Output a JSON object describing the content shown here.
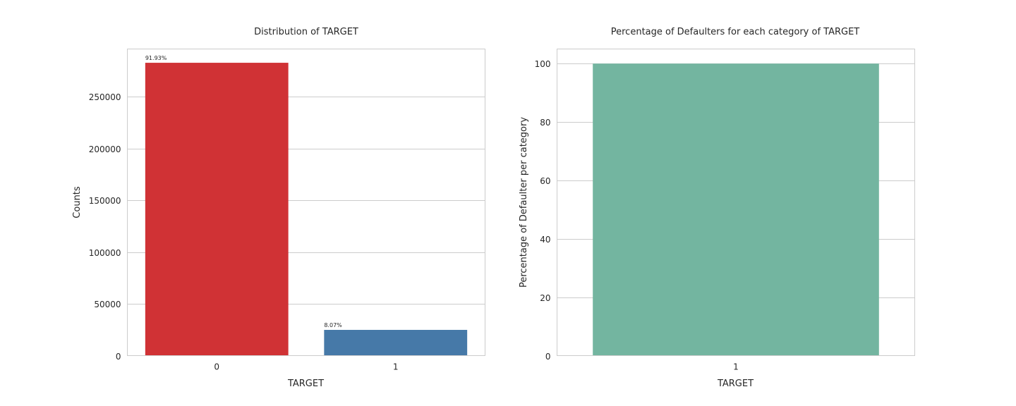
{
  "chart_data": [
    {
      "type": "bar",
      "title": "Distribution of TARGET",
      "xlabel": "TARGET",
      "ylabel": "Counts",
      "categories": [
        "0",
        "1"
      ],
      "values": [
        282686,
        24825
      ],
      "colors": [
        "#d03235",
        "#4679a8"
      ],
      "data_labels": [
        "91.93%",
        "8.07%"
      ],
      "ylim": [
        0,
        296000
      ],
      "yticks": [
        0,
        50000,
        100000,
        150000,
        200000,
        250000
      ],
      "grid": true,
      "legend": "none"
    },
    {
      "type": "bar",
      "title": "Percentage of Defaulters for each category of TARGET",
      "xlabel": "TARGET",
      "ylabel": "Percentage of Defaulter per category",
      "categories": [
        "1"
      ],
      "values": [
        100
      ],
      "colors": [
        "#73b5a0"
      ],
      "data_labels": [],
      "ylim": [
        0,
        105
      ],
      "yticks": [
        0,
        20,
        40,
        60,
        80,
        100
      ],
      "grid": true,
      "legend": "none"
    }
  ]
}
